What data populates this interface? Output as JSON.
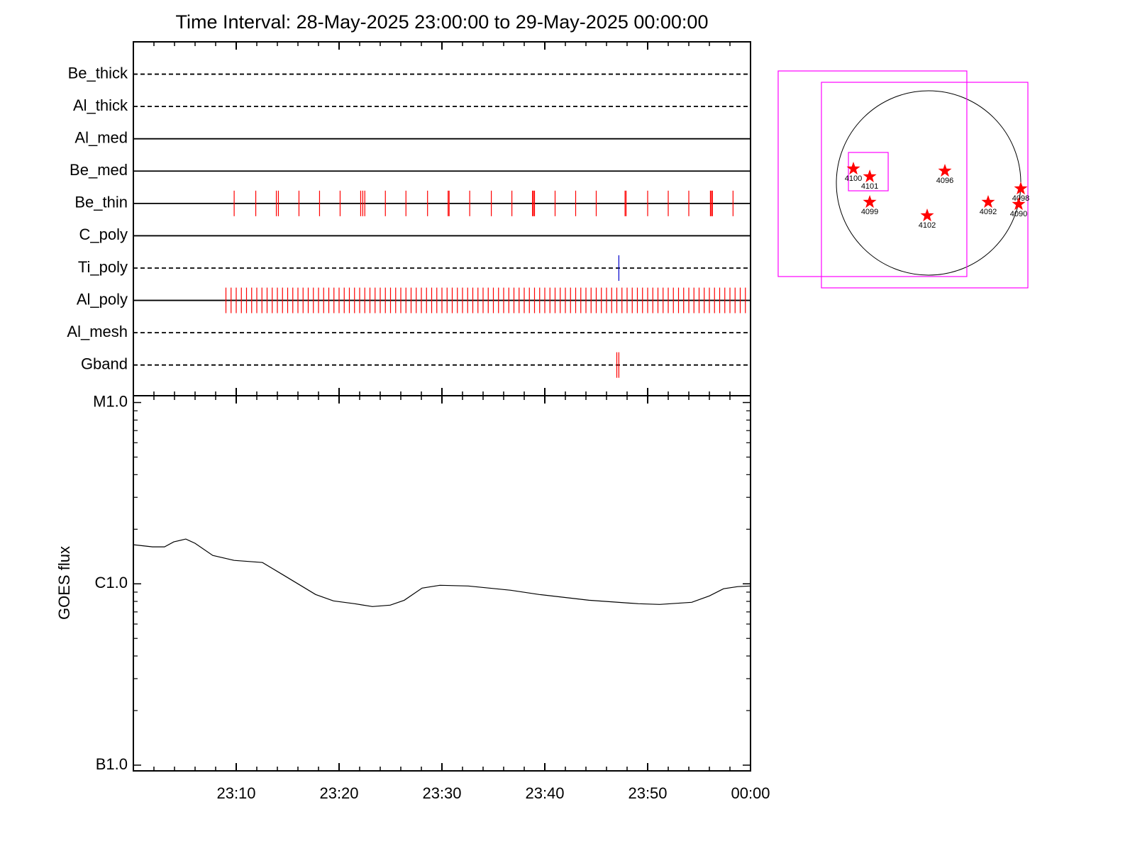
{
  "chart_data": [
    {
      "type": "timeline",
      "title": "Time Interval: 28-May-2025 23:00:00 to 29-May-2025 00:00:00",
      "xlim": [
        0,
        60
      ],
      "xticks": [
        10,
        20,
        30,
        40,
        50,
        60
      ],
      "xminorticks": [
        2,
        4,
        6,
        8,
        12,
        14,
        16,
        18,
        22,
        24,
        26,
        28,
        32,
        34,
        36,
        38,
        42,
        44,
        46,
        48,
        52,
        54,
        56,
        58
      ],
      "rows": [
        {
          "name": "Be_thick",
          "style": "dashed",
          "color": "#ff0000",
          "events": []
        },
        {
          "name": "Al_thick",
          "style": "dashed",
          "color": "#ff0000",
          "events": []
        },
        {
          "name": "Al_med",
          "style": "solid",
          "color": "#ff0000",
          "events": []
        },
        {
          "name": "Be_med",
          "style": "solid",
          "color": "#ff0000",
          "events": []
        },
        {
          "name": "Be_thin",
          "style": "solid",
          "color": "#ff0000",
          "events": [
            9.8,
            11.9,
            13.9,
            14.1,
            16.1,
            18.1,
            20.1,
            22.1,
            22.3,
            22.5,
            24.5,
            26.5,
            28.6,
            30.6,
            30.7,
            32.7,
            34.8,
            36.8,
            38.8,
            38.9,
            39.0,
            41.0,
            43.0,
            45.0,
            47.8,
            47.9,
            50.0,
            52.0,
            54.0,
            56.1,
            56.2,
            56.3,
            58.3
          ]
        },
        {
          "name": "C_poly",
          "style": "solid",
          "color": "#ff0000",
          "events": []
        },
        {
          "name": "Ti_poly",
          "style": "dashed",
          "color": "#0000cc",
          "events": [
            47.2
          ]
        },
        {
          "name": "Al_poly",
          "style": "solid",
          "color": "#ff0000",
          "events": [
            9,
            9.5,
            10,
            10.5,
            11,
            11.5,
            12,
            12.5,
            13,
            13.5,
            14,
            14.5,
            15,
            15.5,
            16,
            16.5,
            17,
            17.5,
            18,
            18.5,
            19,
            19.5,
            20,
            20.5,
            21,
            21.5,
            22,
            22.5,
            23,
            23.5,
            24,
            24.5,
            25,
            25.5,
            26,
            26.5,
            27,
            27.5,
            28,
            28.5,
            29,
            29.5,
            30,
            30.5,
            31,
            31.5,
            32,
            32.5,
            33,
            33.5,
            34,
            34.5,
            35,
            35.5,
            36,
            36.5,
            37,
            37.5,
            38,
            38.5,
            39,
            39.5,
            40,
            40.5,
            41,
            41.5,
            42,
            42.5,
            43,
            43.5,
            44,
            44.5,
            45,
            45.5,
            46,
            46.5,
            47,
            47.5,
            48,
            48.5,
            49,
            49.5,
            50,
            50.5,
            51,
            51.5,
            52,
            52.5,
            53,
            53.5,
            54,
            54.5,
            55,
            55.5,
            56,
            56.5,
            57,
            57.5,
            58,
            58.5,
            59,
            59.5
          ]
        },
        {
          "name": "Al_mesh",
          "style": "dashed",
          "color": "#ff0000",
          "events": []
        },
        {
          "name": "Gband",
          "style": "dashed",
          "color": "#ff0000",
          "events": [
            47.0,
            47.2
          ]
        }
      ]
    },
    {
      "type": "line",
      "ylabel": "GOES flux",
      "log": true,
      "color": "#000000",
      "xlim": [
        0,
        60
      ],
      "xticks": [
        {
          "value": 10,
          "label": "23:10"
        },
        {
          "value": 20,
          "label": "23:20"
        },
        {
          "value": 30,
          "label": "23:30"
        },
        {
          "value": 40,
          "label": "23:40"
        },
        {
          "value": 50,
          "label": "23:50"
        },
        {
          "value": 60,
          "label": "00:00"
        }
      ],
      "xminorticks": [
        2,
        4,
        6,
        8,
        12,
        14,
        16,
        18,
        22,
        24,
        26,
        28,
        32,
        34,
        36,
        38,
        42,
        44,
        46,
        48,
        52,
        54,
        56,
        58
      ],
      "ylim": [
        9.3e-08,
        1.09e-05
      ],
      "yticks": [
        {
          "value": 1e-07,
          "label": "B1.0"
        },
        {
          "value": 1e-06,
          "label": "C1.0"
        },
        {
          "value": 1e-05,
          "label": "M1.0"
        }
      ],
      "yminorticks": [
        2e-07,
        3e-07,
        4e-07,
        5e-07,
        6e-07,
        7e-07,
        8e-07,
        9e-07,
        2e-06,
        3e-06,
        4e-06,
        5e-06,
        6e-06,
        7e-06,
        8e-06,
        9e-06
      ],
      "x": [
        0,
        1.86,
        3.03,
        3.93,
        5.1,
        6.0,
        7.72,
        9.79,
        12.55,
        14.62,
        17.72,
        19.45,
        21.52,
        23.24,
        24.97,
        26.34,
        28.07,
        29.79,
        32.55,
        36.69,
        39.45,
        44.28,
        49.1,
        51.17,
        54.28,
        56.0,
        57.38,
        58.76,
        60
      ],
      "values": [
        1.643e-06,
        1.599e-06,
        1.599e-06,
        1.704e-06,
        1.766e-06,
        1.673e-06,
        1.435e-06,
        1.347e-06,
        1.311e-06,
        1.115e-06,
        8.73e-07,
        8.05e-07,
        7.77e-07,
        7.49e-07,
        7.63e-07,
        8.12e-07,
        9.47e-07,
        9.82e-07,
        9.73e-07,
        9.22e-07,
        8.73e-07,
        8.12e-07,
        7.77e-07,
        7.7e-07,
        7.91e-07,
        8.58e-07,
        9.39e-07,
        9.65e-07,
        9.73e-07
      ]
    },
    {
      "type": "map",
      "star_color": "#ff0000",
      "box_color": "#ff00ff",
      "boxes": [
        {
          "xlim": [
            -1.631,
            0.415
          ],
          "ylim": [
            -1.015,
            1.215
          ]
        },
        {
          "xlim": [
            -1.162,
            1.077
          ],
          "ylim": [
            -1.138,
            1.092
          ]
        },
        {
          "xlim": [
            -0.869,
            -0.438
          ],
          "ylim": [
            -0.085,
            0.331
          ]
        }
      ],
      "points": [
        {
          "label": "4100",
          "x": -0.815,
          "y": 0.154
        },
        {
          "label": "4101",
          "x": -0.638,
          "y": 0.069
        },
        {
          "label": "4096",
          "x": 0.177,
          "y": 0.131
        },
        {
          "label": "4099",
          "x": -0.638,
          "y": -0.208
        },
        {
          "label": "4102",
          "x": -0.015,
          "y": -0.354
        },
        {
          "label": "4092",
          "x": 0.646,
          "y": -0.208
        },
        {
          "label": "4098",
          "x": 1.0,
          "y": -0.062
        },
        {
          "label": "4090",
          "x": 0.977,
          "y": -0.231
        }
      ]
    }
  ]
}
